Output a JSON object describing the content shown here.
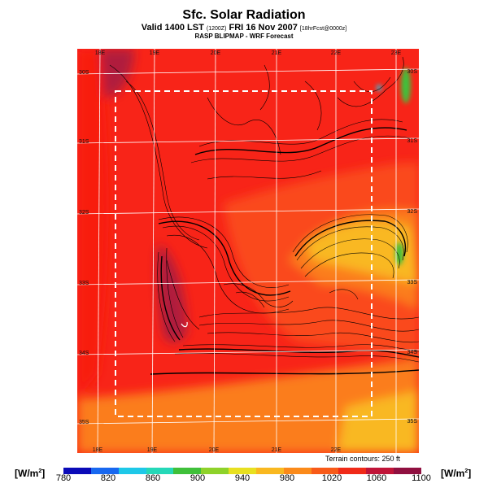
{
  "header": {
    "title": "Sfc. Solar Radiation",
    "subtitle_main": "Valid 1400 LST",
    "subtitle_small1": "(1200Z)",
    "subtitle_date": "FRI 16 Nov 2007",
    "subtitle_small2": "[18hrFcst@0000z]",
    "source": "RASP BLIPMAP - WRF Forecast"
  },
  "map": {
    "lon_labels_top": [
      "18E",
      "19E",
      "20E",
      "21E",
      "22E",
      "23E"
    ],
    "lon_labels_bottom": [
      "18E",
      "19E",
      "20E",
      "21E",
      "22E"
    ],
    "lat_labels_left": [
      "30S",
      "31S",
      "32S",
      "33S",
      "34S",
      "35S"
    ],
    "lat_labels_right": [
      "30S",
      "31S",
      "32S",
      "33S",
      "34S",
      "35S"
    ],
    "terrain_note": "Terrain contours: 250 ft",
    "colors": {
      "base": "#f82418",
      "plains": "#fa4a1a",
      "high_west": "#b01a3c",
      "coast_west": "#f81a10",
      "orange": "#fb7d1a",
      "yellow": "#f9b820",
      "green": "#3fc03a",
      "cyan": "#1ec8e8"
    }
  },
  "colorbar": {
    "unit_left": "[W/m",
    "unit_right": "[W/m",
    "unit_sup": "2",
    "unit_close": "]",
    "ticks": [
      "780",
      "820",
      "860",
      "900",
      "940",
      "980",
      "1020",
      "1060",
      "1100"
    ],
    "colors": [
      "#0a0ab8",
      "#1868f0",
      "#1ec8e8",
      "#25d8b8",
      "#3fc03a",
      "#8ed22a",
      "#e8e020",
      "#f9b820",
      "#fb8a1a",
      "#f85a18",
      "#f02a18",
      "#c01438",
      "#901040"
    ]
  }
}
